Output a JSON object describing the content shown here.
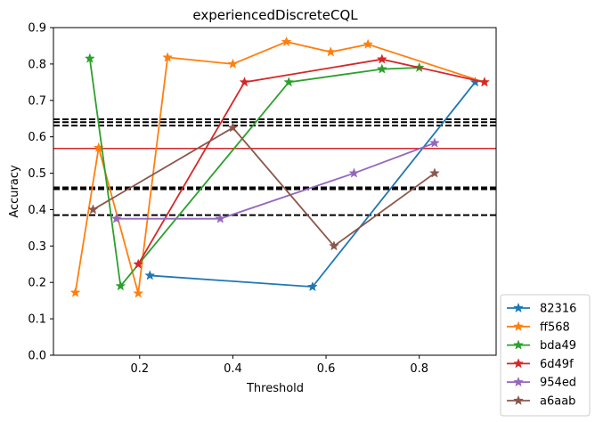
{
  "chart_data": {
    "type": "line",
    "title": "experiencedDiscreteCQL",
    "xlabel": "Threshold",
    "ylabel": "Accuracy",
    "xlim": [
      0.015,
      0.965
    ],
    "ylim": [
      0.0,
      0.9
    ],
    "x_ticks": [
      0.2,
      0.4,
      0.6,
      0.8
    ],
    "x_tick_labels": [
      "0.2",
      "0.4",
      "0.6",
      "0.8"
    ],
    "y_ticks": [
      0.0,
      0.1,
      0.2,
      0.3,
      0.4,
      0.5,
      0.6,
      0.7,
      0.8,
      0.9
    ],
    "y_tick_labels": [
      "0.0",
      "0.1",
      "0.2",
      "0.3",
      "0.4",
      "0.5",
      "0.6",
      "0.7",
      "0.8",
      "0.9"
    ],
    "grid": false,
    "legend_position": "outside-bottom-right",
    "marker": "star",
    "series": [
      {
        "name": "82316",
        "color": "#1f77b4",
        "x": [
          0.222,
          0.571,
          0.92
        ],
        "y": [
          0.219,
          0.188,
          0.75
        ]
      },
      {
        "name": "ff568",
        "color": "#ff7f0e",
        "x": [
          0.062,
          0.112,
          0.197,
          0.26,
          0.4,
          0.515,
          0.61,
          0.69,
          0.94
        ],
        "y": [
          0.172,
          0.57,
          0.17,
          0.818,
          0.8,
          0.861,
          0.833,
          0.854,
          0.75
        ]
      },
      {
        "name": "bda49",
        "color": "#2ca02c",
        "x": [
          0.093,
          0.159,
          0.52,
          0.72,
          0.8
        ],
        "y": [
          0.815,
          0.19,
          0.75,
          0.786,
          0.79
        ]
      },
      {
        "name": "6d49f",
        "color": "#d62728",
        "x": [
          0.197,
          0.425,
          0.72,
          0.94
        ],
        "y": [
          0.25,
          0.75,
          0.813,
          0.75
        ]
      },
      {
        "name": "954ed",
        "color": "#9467bd",
        "x": [
          0.15,
          0.373,
          0.66,
          0.833
        ],
        "y": [
          0.375,
          0.375,
          0.5,
          0.583
        ]
      },
      {
        "name": "a6aab",
        "color": "#8c564b",
        "x": [
          0.1,
          0.4,
          0.617,
          0.833
        ],
        "y": [
          0.4,
          0.625,
          0.3,
          0.5
        ]
      }
    ],
    "reference_lines": [
      {
        "y": 0.568,
        "color": "#d62728",
        "style": "solid"
      },
      {
        "y": 0.648,
        "color": "#000000",
        "style": "dashed"
      },
      {
        "y": 0.64,
        "color": "#000000",
        "style": "dashed"
      },
      {
        "y": 0.631,
        "color": "#000000",
        "style": "dashed"
      },
      {
        "y": 0.461,
        "color": "#000000",
        "style": "dashed"
      },
      {
        "y": 0.456,
        "color": "#000000",
        "style": "dashed"
      },
      {
        "y": 0.385,
        "color": "#000000",
        "style": "dashed"
      }
    ]
  }
}
